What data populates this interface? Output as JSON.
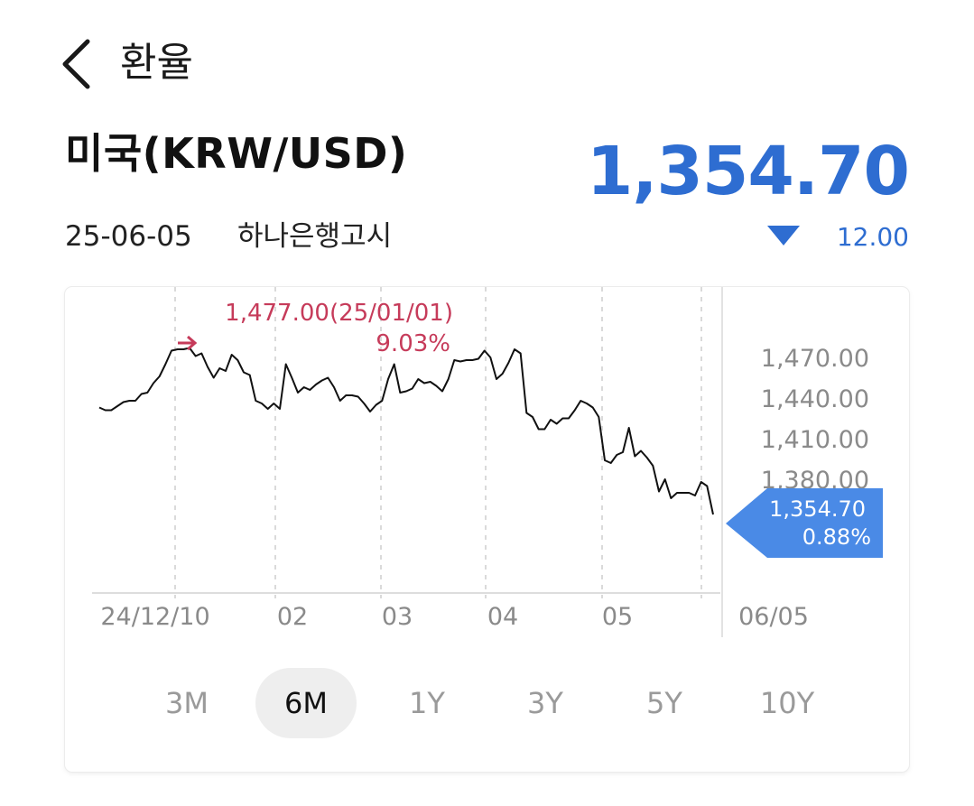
{
  "header": {
    "title": "환율",
    "back_icon": "chevron-left-icon"
  },
  "currency": {
    "name": "미국(KRW/USD)",
    "rate": "1,354.70",
    "date": "25-06-05",
    "source": "하나은행고시",
    "change_direction": "down",
    "change": "12.00"
  },
  "colors": {
    "accent": "#2e6dd1",
    "highlight": "#c63b5a",
    "badge": "#4a8ae6"
  },
  "chart_data": {
    "type": "line",
    "x_tick_labels": [
      "24/12/10",
      "02",
      "03",
      "04",
      "05",
      "06/05"
    ],
    "y_tick_labels": [
      "1,470.00",
      "1,440.00",
      "1,410.00",
      "1,380.00"
    ],
    "y_ticks": [
      1470,
      1440,
      1410,
      1380
    ],
    "ylim": [
      1305,
      1490
    ],
    "grid": "vertical dashed at month boundaries",
    "annotation": {
      "label": "1,477.00(25/01/01)",
      "pct": "9.03%",
      "value": 1477
    },
    "current": {
      "label": "1,354.70",
      "pct": "0.88%",
      "value": 1354.7
    },
    "values": [
      1433,
      1431,
      1431,
      1434,
      1437,
      1438,
      1438,
      1443,
      1444,
      1451,
      1456,
      1465,
      1475,
      1476,
      1476,
      1477,
      1471,
      1473,
      1463,
      1455,
      1462,
      1460,
      1472,
      1468,
      1459,
      1457,
      1438,
      1436,
      1432,
      1436,
      1432,
      1465,
      1455,
      1444,
      1448,
      1446,
      1450,
      1453,
      1455,
      1448,
      1438,
      1442,
      1442,
      1441,
      1436,
      1430,
      1435,
      1438,
      1454,
      1465,
      1444,
      1445,
      1447,
      1454,
      1451,
      1452,
      1449,
      1445,
      1454,
      1468,
      1467,
      1468,
      1468,
      1469,
      1475,
      1470,
      1454,
      1458,
      1466,
      1476,
      1473,
      1429,
      1426,
      1417,
      1417,
      1424,
      1421,
      1425,
      1425,
      1431,
      1438,
      1436,
      1433,
      1426,
      1394,
      1392,
      1398,
      1400,
      1418,
      1397,
      1401,
      1396,
      1390,
      1371,
      1380,
      1366,
      1370,
      1370,
      1370,
      1368,
      1378,
      1375,
      1354
    ]
  },
  "periods": [
    {
      "label": "3M",
      "active": false
    },
    {
      "label": "6M",
      "active": true
    },
    {
      "label": "1Y",
      "active": false
    },
    {
      "label": "3Y",
      "active": false
    },
    {
      "label": "5Y",
      "active": false
    },
    {
      "label": "10Y",
      "active": false
    }
  ]
}
